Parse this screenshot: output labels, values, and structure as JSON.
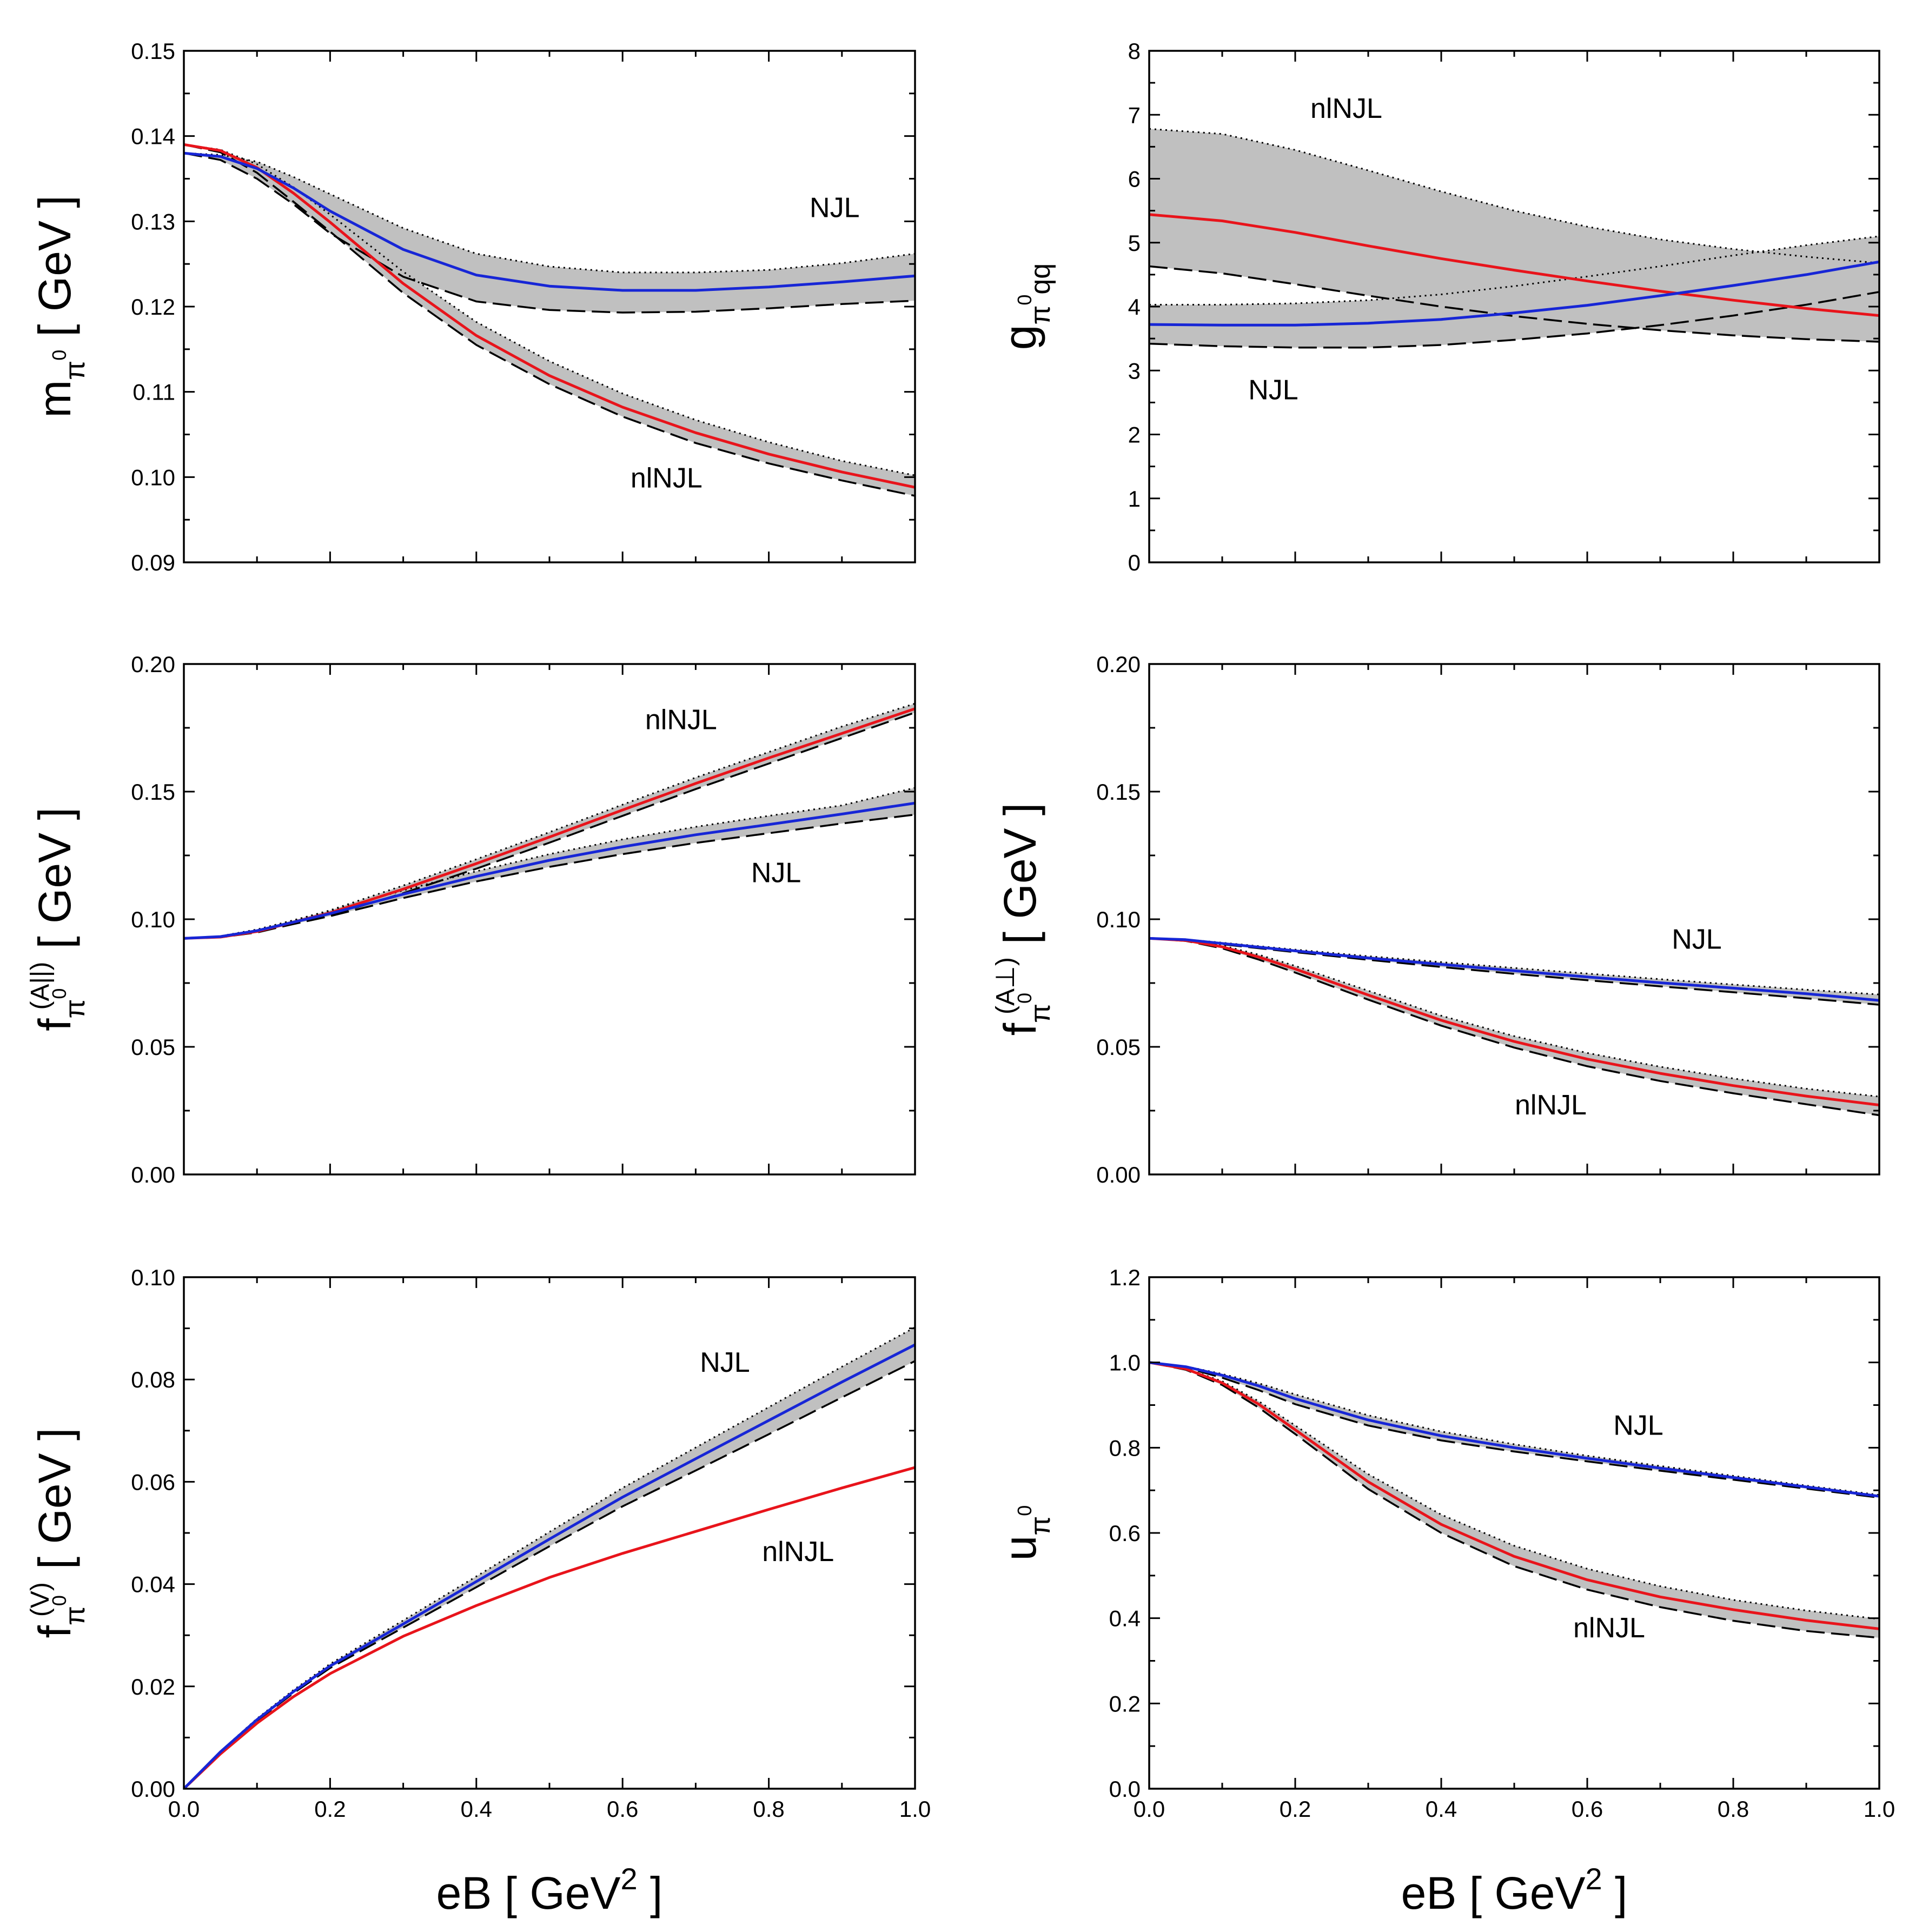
{
  "figure": {
    "xlabel": {
      "main": "eB [ GeV",
      "sup": "2",
      "close": " ]"
    },
    "colors": {
      "nlNJL": "#e8141b",
      "NJL": "#1726d6",
      "band": "#c0c0c0",
      "axis": "#000000"
    }
  },
  "chart_data": [
    {
      "id": "m_pi0",
      "type": "line",
      "ylabel": {
        "base": "m",
        "sub": "π",
        "subsup": "0",
        "sup": "",
        "unit": "[ GeV ]"
      },
      "xlim": [
        0,
        1.0
      ],
      "ylim": [
        0.09,
        0.15
      ],
      "yticks": [
        "0.09",
        "0.10",
        "0.11",
        "0.12",
        "0.13",
        "0.14",
        "0.15"
      ],
      "xticks": [],
      "labels": [
        {
          "text": "NJL",
          "x": 0.89,
          "y": 0.1305
        },
        {
          "text": "nlNJL",
          "x": 0.66,
          "y": 0.0988
        }
      ],
      "series": [
        {
          "name": "NJL",
          "x": [
            0,
            0.05,
            0.1,
            0.15,
            0.2,
            0.3,
            0.4,
            0.5,
            0.6,
            0.7,
            0.8,
            0.9,
            1.0
          ],
          "y": [
            0.138,
            0.1376,
            0.1362,
            0.1339,
            0.1312,
            0.1267,
            0.1237,
            0.1224,
            0.1219,
            0.1219,
            0.1223,
            0.1229,
            0.1236
          ],
          "lower": [
            0.138,
            0.1372,
            0.135,
            0.132,
            0.1286,
            0.1235,
            0.1206,
            0.1196,
            0.1193,
            0.1194,
            0.1198,
            0.1203,
            0.1207
          ],
          "upper": [
            0.138,
            0.1378,
            0.137,
            0.1352,
            0.1332,
            0.1292,
            0.1262,
            0.1247,
            0.124,
            0.124,
            0.1243,
            0.1251,
            0.1262
          ]
        },
        {
          "name": "nlNJL",
          "x": [
            0,
            0.05,
            0.1,
            0.15,
            0.2,
            0.3,
            0.4,
            0.5,
            0.6,
            0.7,
            0.8,
            0.9,
            1.0
          ],
          "y": [
            0.139,
            0.1383,
            0.1363,
            0.1333,
            0.1299,
            0.1227,
            0.1166,
            0.1119,
            0.1082,
            0.1052,
            0.1027,
            0.1006,
            0.0988
          ],
          "lower": [
            0.139,
            0.1381,
            0.1357,
            0.1323,
            0.1288,
            0.1216,
            0.1155,
            0.1109,
            0.1071,
            0.104,
            0.1016,
            0.0996,
            0.0978
          ],
          "upper": [
            0.139,
            0.1384,
            0.1367,
            0.134,
            0.1308,
            0.1241,
            0.1182,
            0.1136,
            0.1098,
            0.1067,
            0.1041,
            0.1019,
            0.1002
          ]
        }
      ]
    },
    {
      "id": "g_pi0qq",
      "type": "line",
      "ylabel": {
        "base": "g",
        "sub": "π",
        "subsup": "0",
        "subtail": "qq",
        "sup": "",
        "unit": ""
      },
      "xlim": [
        0,
        1.0
      ],
      "ylim": [
        0,
        8
      ],
      "yticks": [
        "0",
        "1",
        "2",
        "3",
        "4",
        "5",
        "6",
        "7",
        "8"
      ],
      "xticks": [],
      "labels": [
        {
          "text": "nlNJL",
          "x": 0.27,
          "y": 6.95
        },
        {
          "text": "NJL",
          "x": 0.17,
          "y": 2.55
        }
      ],
      "series": [
        {
          "name": "NJL",
          "x": [
            0,
            0.1,
            0.2,
            0.3,
            0.4,
            0.5,
            0.6,
            0.7,
            0.8,
            0.9,
            1.0
          ],
          "y": [
            3.72,
            3.71,
            3.71,
            3.74,
            3.8,
            3.9,
            4.02,
            4.17,
            4.33,
            4.5,
            4.7
          ],
          "lower": [
            3.42,
            3.38,
            3.36,
            3.36,
            3.4,
            3.48,
            3.58,
            3.71,
            3.86,
            4.03,
            4.23
          ],
          "upper": [
            4.03,
            4.03,
            4.05,
            4.1,
            4.19,
            4.32,
            4.47,
            4.63,
            4.8,
            4.96,
            5.1
          ]
        },
        {
          "name": "nlNJL",
          "x": [
            0,
            0.1,
            0.2,
            0.3,
            0.4,
            0.5,
            0.6,
            0.7,
            0.8,
            0.9,
            1.0
          ],
          "y": [
            5.44,
            5.34,
            5.16,
            4.95,
            4.75,
            4.57,
            4.4,
            4.24,
            4.1,
            3.97,
            3.86
          ],
          "lower": [
            4.63,
            4.52,
            4.35,
            4.17,
            4.0,
            3.85,
            3.73,
            3.63,
            3.55,
            3.49,
            3.45
          ],
          "upper": [
            6.78,
            6.7,
            6.45,
            6.13,
            5.8,
            5.5,
            5.25,
            5.05,
            4.9,
            4.78,
            4.68
          ]
        }
      ]
    },
    {
      "id": "f_A_par",
      "type": "line",
      "ylabel": {
        "base": "f",
        "sub": "π",
        "subsup": "0",
        "sup": "(A||)",
        "unit": "[ GeV ]"
      },
      "xlim": [
        0,
        1.0
      ],
      "ylim": [
        0,
        0.2
      ],
      "yticks": [
        "0.00",
        "0.05",
        "0.10",
        "0.15",
        "0.20"
      ],
      "xticks": [],
      "labels": [
        {
          "text": "nlNJL",
          "x": 0.68,
          "y": 0.1745
        },
        {
          "text": "NJL",
          "x": 0.81,
          "y": 0.1145
        }
      ],
      "series": [
        {
          "name": "NJL",
          "x": [
            0,
            0.05,
            0.1,
            0.2,
            0.3,
            0.4,
            0.5,
            0.6,
            0.7,
            0.8,
            0.9,
            1.0
          ],
          "y": [
            0.0925,
            0.0932,
            0.0955,
            0.1022,
            0.1098,
            0.1168,
            0.1231,
            0.1284,
            0.1331,
            0.1371,
            0.1412,
            0.1455
          ],
          "lower": [
            0.0925,
            0.093,
            0.095,
            0.1012,
            0.1083,
            0.1148,
            0.1205,
            0.1255,
            0.1299,
            0.1337,
            0.1375,
            0.141
          ],
          "upper": [
            0.0925,
            0.0934,
            0.096,
            0.1032,
            0.1113,
            0.1188,
            0.1255,
            0.1313,
            0.1362,
            0.1405,
            0.1446,
            0.1515
          ]
        },
        {
          "name": "nlNJL",
          "x": [
            0,
            0.05,
            0.1,
            0.2,
            0.3,
            0.4,
            0.5,
            0.6,
            0.7,
            0.8,
            0.9,
            1.0
          ],
          "y": [
            0.0925,
            0.093,
            0.0952,
            0.1025,
            0.1118,
            0.1218,
            0.1322,
            0.1428,
            0.1532,
            0.1632,
            0.1728,
            0.1825
          ],
          "lower": [
            0.0925,
            0.0929,
            0.0948,
            0.1015,
            0.1102,
            0.1198,
            0.13,
            0.1405,
            0.151,
            0.161,
            0.171,
            0.181
          ],
          "upper": [
            0.0925,
            0.0932,
            0.0957,
            0.1035,
            0.1132,
            0.1235,
            0.1341,
            0.1449,
            0.1555,
            0.1655,
            0.1755,
            0.1845
          ]
        }
      ]
    },
    {
      "id": "f_A_perp",
      "type": "line",
      "ylabel": {
        "base": "f",
        "sub": "π",
        "subsup": "0",
        "sup": "(A⊥)",
        "unit": "[ GeV ]"
      },
      "xlim": [
        0,
        1.0
      ],
      "ylim": [
        0,
        0.2
      ],
      "yticks": [
        "0.00",
        "0.05",
        "0.10",
        "0.15",
        "0.20"
      ],
      "xticks": [],
      "labels": [
        {
          "text": "NJL",
          "x": 0.75,
          "y": 0.0885
        },
        {
          "text": "nlNJL",
          "x": 0.55,
          "y": 0.0235
        }
      ],
      "series": [
        {
          "name": "NJL",
          "x": [
            0,
            0.05,
            0.1,
            0.2,
            0.3,
            0.4,
            0.5,
            0.6,
            0.7,
            0.8,
            0.9,
            1.0
          ],
          "y": [
            0.0925,
            0.092,
            0.0905,
            0.0876,
            0.0848,
            0.0823,
            0.0798,
            0.0774,
            0.0751,
            0.073,
            0.0708,
            0.0682
          ],
          "lower": [
            0.0925,
            0.0919,
            0.0902,
            0.0871,
            0.0841,
            0.0813,
            0.0786,
            0.0761,
            0.0737,
            0.0714,
            0.069,
            0.0665
          ],
          "upper": [
            0.0925,
            0.0921,
            0.0908,
            0.0881,
            0.0855,
            0.0832,
            0.0809,
            0.0787,
            0.0765,
            0.0744,
            0.0724,
            0.0705
          ]
        },
        {
          "name": "nlNJL",
          "x": [
            0,
            0.05,
            0.1,
            0.15,
            0.2,
            0.3,
            0.4,
            0.5,
            0.6,
            0.7,
            0.8,
            0.9,
            1.0
          ],
          "y": [
            0.0925,
            0.0917,
            0.0892,
            0.0852,
            0.0805,
            0.0703,
            0.0604,
            0.0521,
            0.0452,
            0.0396,
            0.0348,
            0.0307,
            0.0272
          ],
          "lower": [
            0.0925,
            0.0915,
            0.0886,
            0.0842,
            0.0791,
            0.0685,
            0.0583,
            0.0497,
            0.0424,
            0.0366,
            0.0318,
            0.0275,
            0.0232
          ],
          "upper": [
            0.0925,
            0.0919,
            0.0897,
            0.0861,
            0.0817,
            0.072,
            0.0622,
            0.0542,
            0.0476,
            0.0422,
            0.0376,
            0.0336,
            0.0305
          ]
        }
      ]
    },
    {
      "id": "f_V",
      "type": "line",
      "ylabel": {
        "base": "f",
        "sub": "π",
        "subsup": "0",
        "sup": "(V)",
        "unit": "[ GeV ]"
      },
      "xlim": [
        0,
        1.0
      ],
      "ylim": [
        0,
        0.1
      ],
      "yticks": [
        "0.00",
        "0.02",
        "0.04",
        "0.06",
        "0.08",
        "0.10"
      ],
      "xticks": [
        "0.0",
        "0.2",
        "0.4",
        "0.6",
        "0.8",
        "1.0"
      ],
      "labels": [
        {
          "text": "NJL",
          "x": 0.74,
          "y": 0.0815
        },
        {
          "text": "nlNJL",
          "x": 0.84,
          "y": 0.0445
        }
      ],
      "series": [
        {
          "name": "NJL",
          "x": [
            0,
            0.05,
            0.1,
            0.15,
            0.2,
            0.3,
            0.4,
            0.5,
            0.6,
            0.7,
            0.8,
            0.9,
            1.0
          ],
          "y": [
            0,
            0.0072,
            0.0135,
            0.019,
            0.024,
            0.0322,
            0.0405,
            0.0488,
            0.057,
            0.0645,
            0.072,
            0.0795,
            0.0868
          ],
          "lower": [
            0,
            0.0071,
            0.0133,
            0.0187,
            0.0236,
            0.0315,
            0.0394,
            0.0474,
            0.0552,
            0.0622,
            0.0693,
            0.0765,
            0.0836
          ],
          "upper": [
            0,
            0.0073,
            0.0137,
            0.0193,
            0.0244,
            0.0329,
            0.0415,
            0.0502,
            0.0588,
            0.0667,
            0.0746,
            0.0825,
            0.0902
          ]
        },
        {
          "name": "nlNJL",
          "x": [
            0,
            0.05,
            0.1,
            0.15,
            0.2,
            0.3,
            0.4,
            0.5,
            0.6,
            0.7,
            0.8,
            0.9,
            1.0
          ],
          "y": [
            0,
            0.0068,
            0.0128,
            0.018,
            0.0225,
            0.0298,
            0.0358,
            0.0413,
            0.046,
            0.0503,
            0.0546,
            0.0588,
            0.0628
          ]
        }
      ]
    },
    {
      "id": "u_pi0",
      "type": "line",
      "ylabel": {
        "base": "u",
        "sub": "π",
        "subsup": "0",
        "sup": "",
        "unit": ""
      },
      "xlim": [
        0,
        1.0
      ],
      "ylim": [
        0,
        1.2
      ],
      "yticks": [
        "0.0",
        "0.2",
        "0.4",
        "0.6",
        "0.8",
        "1.0",
        "1.2"
      ],
      "xticks": [
        "0.0",
        "0.2",
        "0.4",
        "0.6",
        "0.8",
        "1.0"
      ],
      "labels": [
        {
          "text": "NJL",
          "x": 0.67,
          "y": 0.83
        },
        {
          "text": "nlNJL",
          "x": 0.63,
          "y": 0.355
        }
      ],
      "series": [
        {
          "name": "NJL",
          "x": [
            0,
            0.05,
            0.1,
            0.15,
            0.2,
            0.3,
            0.4,
            0.5,
            0.6,
            0.7,
            0.8,
            0.9,
            1.0
          ],
          "y": [
            1.0,
            0.99,
            0.97,
            0.945,
            0.915,
            0.865,
            0.828,
            0.8,
            0.775,
            0.752,
            0.73,
            0.708,
            0.686
          ],
          "lower": [
            1.0,
            0.988,
            0.964,
            0.935,
            0.902,
            0.852,
            0.817,
            0.791,
            0.768,
            0.746,
            0.725,
            0.704,
            0.683
          ],
          "upper": [
            1.0,
            0.991,
            0.973,
            0.951,
            0.925,
            0.876,
            0.838,
            0.808,
            0.781,
            0.757,
            0.734,
            0.711,
            0.689
          ]
        },
        {
          "name": "nlNJL",
          "x": [
            0,
            0.05,
            0.1,
            0.15,
            0.2,
            0.3,
            0.4,
            0.5,
            0.6,
            0.7,
            0.8,
            0.9,
            1.0
          ],
          "y": [
            1.0,
            0.985,
            0.952,
            0.902,
            0.842,
            0.72,
            0.62,
            0.545,
            0.49,
            0.45,
            0.42,
            0.395,
            0.375
          ],
          "lower": [
            1.0,
            0.983,
            0.947,
            0.894,
            0.832,
            0.703,
            0.6,
            0.522,
            0.467,
            0.426,
            0.394,
            0.37,
            0.354
          ],
          "upper": [
            1.0,
            0.986,
            0.956,
            0.909,
            0.852,
            0.738,
            0.643,
            0.57,
            0.516,
            0.475,
            0.443,
            0.418,
            0.398
          ]
        }
      ]
    }
  ]
}
